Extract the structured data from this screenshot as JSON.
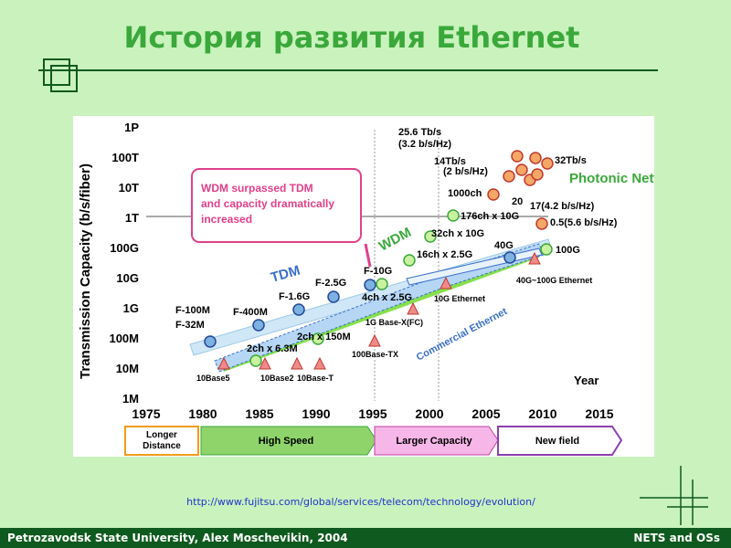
{
  "title": "История развития Ethernet",
  "figure": {
    "y_axis_label": "Transmission Capacity (b/s/fiber)",
    "x_axis_label": "Year",
    "y_ticks": [
      "1M",
      "10M",
      "100M",
      "1G",
      "10G",
      "100G",
      "1T",
      "10T",
      "100T",
      "1P"
    ],
    "x_ticks": [
      "1975",
      "1980",
      "1985",
      "1990",
      "1995",
      "2000",
      "2005",
      "2010",
      "2015"
    ],
    "callout": [
      "WDM surpassed TDM",
      "and capacity dramatically",
      "increased"
    ],
    "bands": [
      "TDM",
      "WDM",
      "Commercial Ethernet",
      "Photonic Network"
    ],
    "labels": [
      "F-100M",
      "F-32M",
      "F-400M",
      "F-1.6G",
      "F-2.5G",
      "F-10G",
      "2ch x 6.3M",
      "2ch x 150M",
      "4ch x 2.5G",
      "16ch x 2.5G",
      "32ch x 10G",
      "176ch x 10G",
      "1000ch",
      "25.6 Tb/s",
      "(3.2 b/s/Hz)",
      "14Tb/s",
      "(2 b/s/Hz)",
      "20",
      "17(4.2 b/s/Hz)",
      "32Tb/s",
      "0.5(5.6 b/s/Hz)",
      "40G",
      "100G",
      "10Base5",
      "10Base2",
      "10Base-T",
      "100Base-TX",
      "1G Base-X(FC)",
      "10G Ethernet",
      "40G~100G Ethernet"
    ],
    "phases": [
      "Longer Distance",
      "High Speed",
      "Larger Capacity",
      "New field"
    ]
  },
  "source_url": "http://www.fujitsu.com/global/services/telecom/technology/evolution/",
  "footer": {
    "left": "Petrozavodsk State University, Alex Moschevikin, 2004",
    "right": "NETS and OSs"
  }
}
